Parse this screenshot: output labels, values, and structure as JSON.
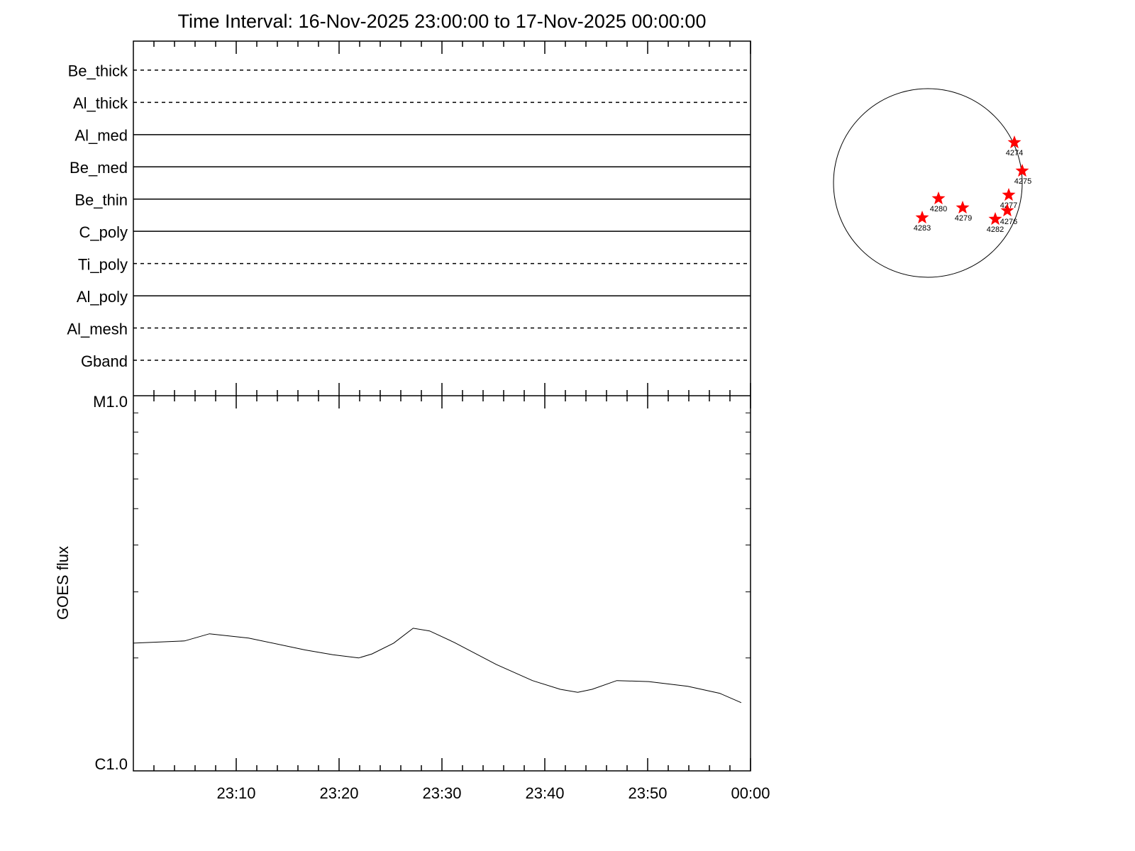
{
  "chart_data": {
    "type": "line",
    "title": "Time Interval: 16-Nov-2025 23:00:00 to 17-Nov-2025 00:00:00",
    "ylabel": "GOES flux",
    "x": [
      0,
      4.97,
      7.4,
      11.2,
      16.7,
      19.4,
      21.9,
      23.2,
      25.3,
      27.2,
      28.8,
      31.2,
      35.3,
      38.8,
      41.5,
      43.2,
      44.6,
      47.0,
      50.1,
      53.9,
      57.0,
      59.1
    ],
    "series": [
      {
        "name": "GOES flux",
        "color": "#000000",
        "values": [
          2.19e-06,
          2.22e-06,
          2.32e-06,
          2.26e-06,
          2.1e-06,
          2.04e-06,
          2e-06,
          2.05e-06,
          2.19e-06,
          2.4e-06,
          2.36e-06,
          2.2e-06,
          1.92e-06,
          1.74e-06,
          1.65e-06,
          1.62e-06,
          1.65e-06,
          1.74e-06,
          1.73e-06,
          1.68e-06,
          1.61e-06,
          1.52e-06
        ]
      }
    ],
    "xlim": [
      0,
      60
    ],
    "xticks": [
      {
        "value": 10,
        "label": "23:10"
      },
      {
        "value": 20,
        "label": "23:20"
      },
      {
        "value": 30,
        "label": "23:30"
      },
      {
        "value": 40,
        "label": "23:40"
      },
      {
        "value": 50,
        "label": "23:50"
      },
      {
        "value": 60,
        "label": "00:00"
      }
    ],
    "xminorticks": [
      2,
      4,
      6,
      8,
      12,
      14,
      16,
      18,
      22,
      24,
      26,
      28,
      32,
      34,
      36,
      38,
      42,
      44,
      46,
      48,
      52,
      54,
      56,
      58
    ],
    "ylim": [
      1e-06,
      1e-05
    ],
    "yticks": [
      {
        "value": 1e-06,
        "label": "C1.0"
      },
      {
        "value": 1e-05,
        "label": "M1.0"
      }
    ],
    "yminorticks": [
      2e-06,
      3e-06,
      4e-06,
      5e-06,
      6e-06,
      7e-06,
      8e-06,
      9e-06
    ],
    "ylog": true
  },
  "channels": [
    {
      "name": "Be_thick",
      "style": "dashed"
    },
    {
      "name": "Al_thick",
      "style": "dashed"
    },
    {
      "name": "Al_med",
      "style": "solid"
    },
    {
      "name": "Be_med",
      "style": "solid"
    },
    {
      "name": "Be_thin",
      "style": "solid"
    },
    {
      "name": "C_poly",
      "style": "solid"
    },
    {
      "name": "Ti_poly",
      "style": "dashed"
    },
    {
      "name": "Al_poly",
      "style": "solid"
    },
    {
      "name": "Al_mesh",
      "style": "dashed"
    },
    {
      "name": "Gband",
      "style": "dashed"
    }
  ],
  "regions": [
    "4274",
    "4275",
    "4277",
    "4276",
    "4282",
    "4279",
    "4280",
    "4283"
  ]
}
